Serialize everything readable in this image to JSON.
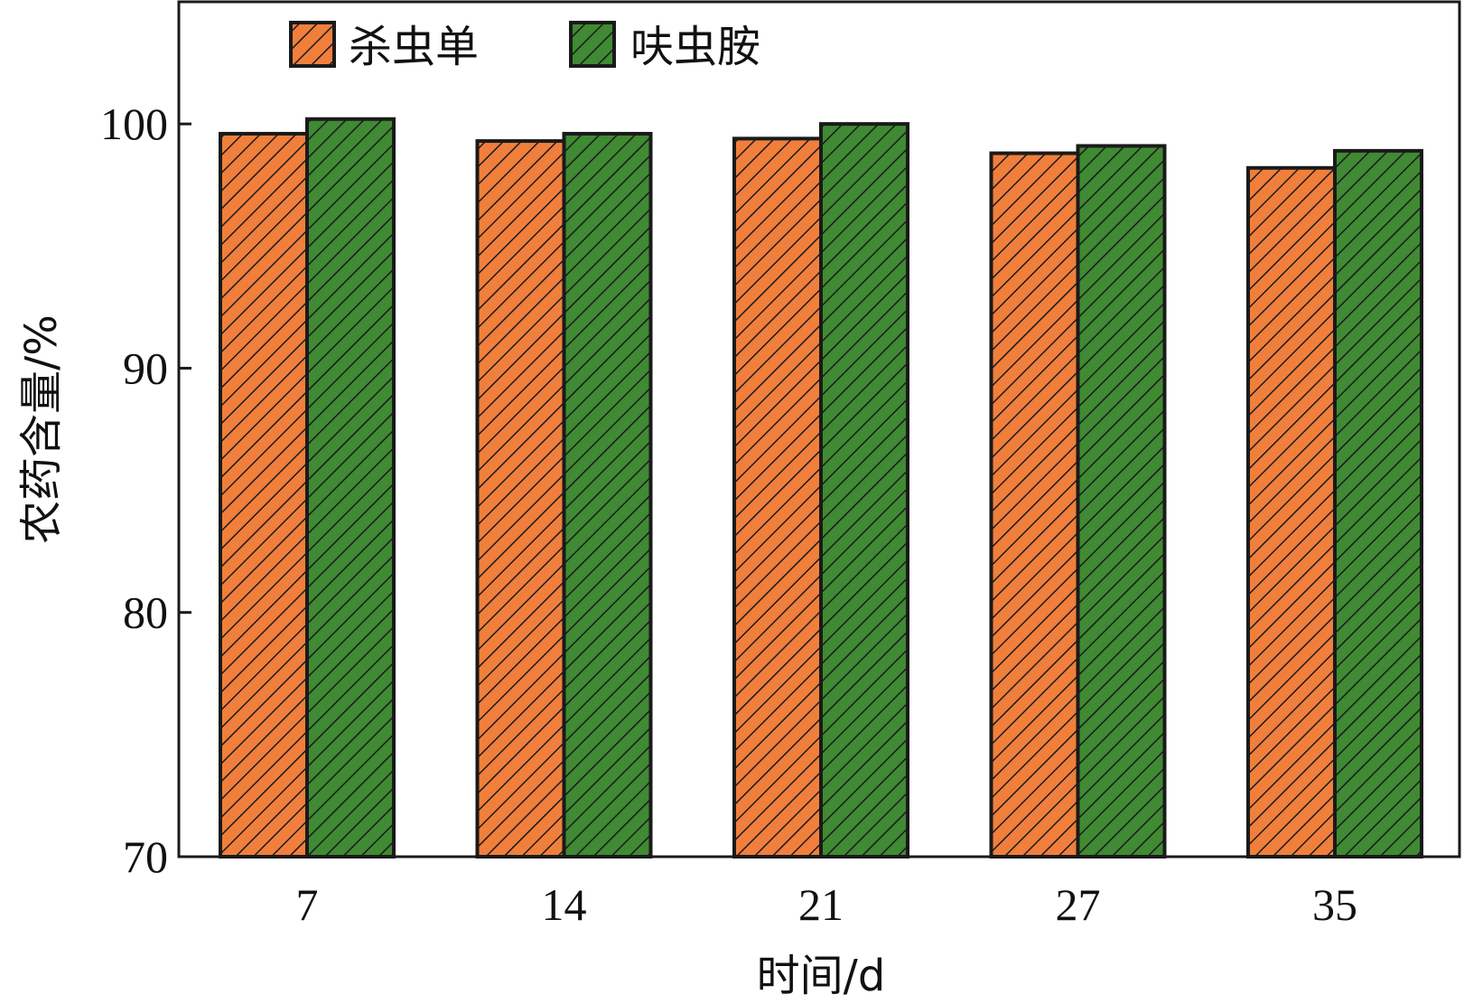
{
  "chart_data": {
    "type": "bar",
    "categories": [
      "7",
      "14",
      "21",
      "27",
      "35"
    ],
    "series": [
      {
        "name": "杀虫单",
        "values": [
          99.6,
          99.3,
          99.4,
          98.8,
          98.2
        ],
        "color": "#f07f3c"
      },
      {
        "name": "呋虫胺",
        "values": [
          100.2,
          99.6,
          100.0,
          99.1,
          98.9
        ],
        "color": "#3f8a33"
      }
    ],
    "xlabel": "时间/d",
    "ylabel": "农药含量/%",
    "ylim": [
      70,
      105
    ],
    "yticks": [
      70,
      80,
      90,
      100
    ],
    "legend_position": "top-left",
    "grid": false,
    "bar_pattern": "diagonal-hatch",
    "edge_color": "#1a1a1a"
  }
}
